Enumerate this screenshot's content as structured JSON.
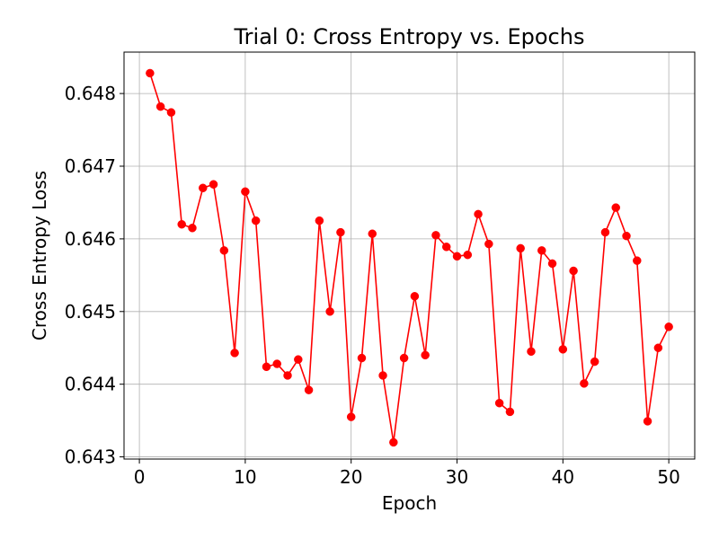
{
  "chart_data": {
    "type": "line",
    "title": "Trial 0: Cross Entropy vs. Epochs",
    "xlabel": "Epoch",
    "ylabel": "Cross Entropy Loss",
    "xlim": [
      -1.45,
      52.45
    ],
    "ylim": [
      0.64297,
      0.64857
    ],
    "xticks": [
      0,
      10,
      20,
      30,
      40,
      50
    ],
    "yticks": [
      0.643,
      0.644,
      0.645,
      0.646,
      0.647,
      0.648
    ],
    "xtick_labels": [
      "0",
      "10",
      "20",
      "30",
      "40",
      "50"
    ],
    "ytick_labels": [
      "0.643",
      "0.644",
      "0.645",
      "0.646",
      "0.647",
      "0.648"
    ],
    "grid": true,
    "series": [
      {
        "color": "#ff0000",
        "marker": "circle",
        "x": [
          1,
          2,
          3,
          4,
          5,
          6,
          7,
          8,
          9,
          10,
          11,
          12,
          13,
          14,
          15,
          16,
          17,
          18,
          19,
          20,
          21,
          22,
          23,
          24,
          25,
          26,
          27,
          28,
          29,
          30,
          31,
          32,
          33,
          34,
          35,
          36,
          37,
          38,
          39,
          40,
          41,
          42,
          43,
          44,
          45,
          46,
          47,
          48,
          49,
          50
        ],
        "y": [
          0.64828,
          0.64782,
          0.64774,
          0.6462,
          0.64615,
          0.6467,
          0.64675,
          0.64584,
          0.64443,
          0.64665,
          0.64625,
          0.64424,
          0.64428,
          0.64412,
          0.64434,
          0.64392,
          0.64625,
          0.645,
          0.64609,
          0.64355,
          0.64436,
          0.64607,
          0.64412,
          0.6432,
          0.64436,
          0.64521,
          0.6444,
          0.64605,
          0.64589,
          0.64576,
          0.64578,
          0.64634,
          0.64593,
          0.64374,
          0.64362,
          0.64587,
          0.64445,
          0.64584,
          0.64566,
          0.64448,
          0.64556,
          0.64401,
          0.64431,
          0.64609,
          0.64643,
          0.64604,
          0.6457,
          0.64349,
          0.6445,
          0.64479
        ]
      }
    ]
  }
}
